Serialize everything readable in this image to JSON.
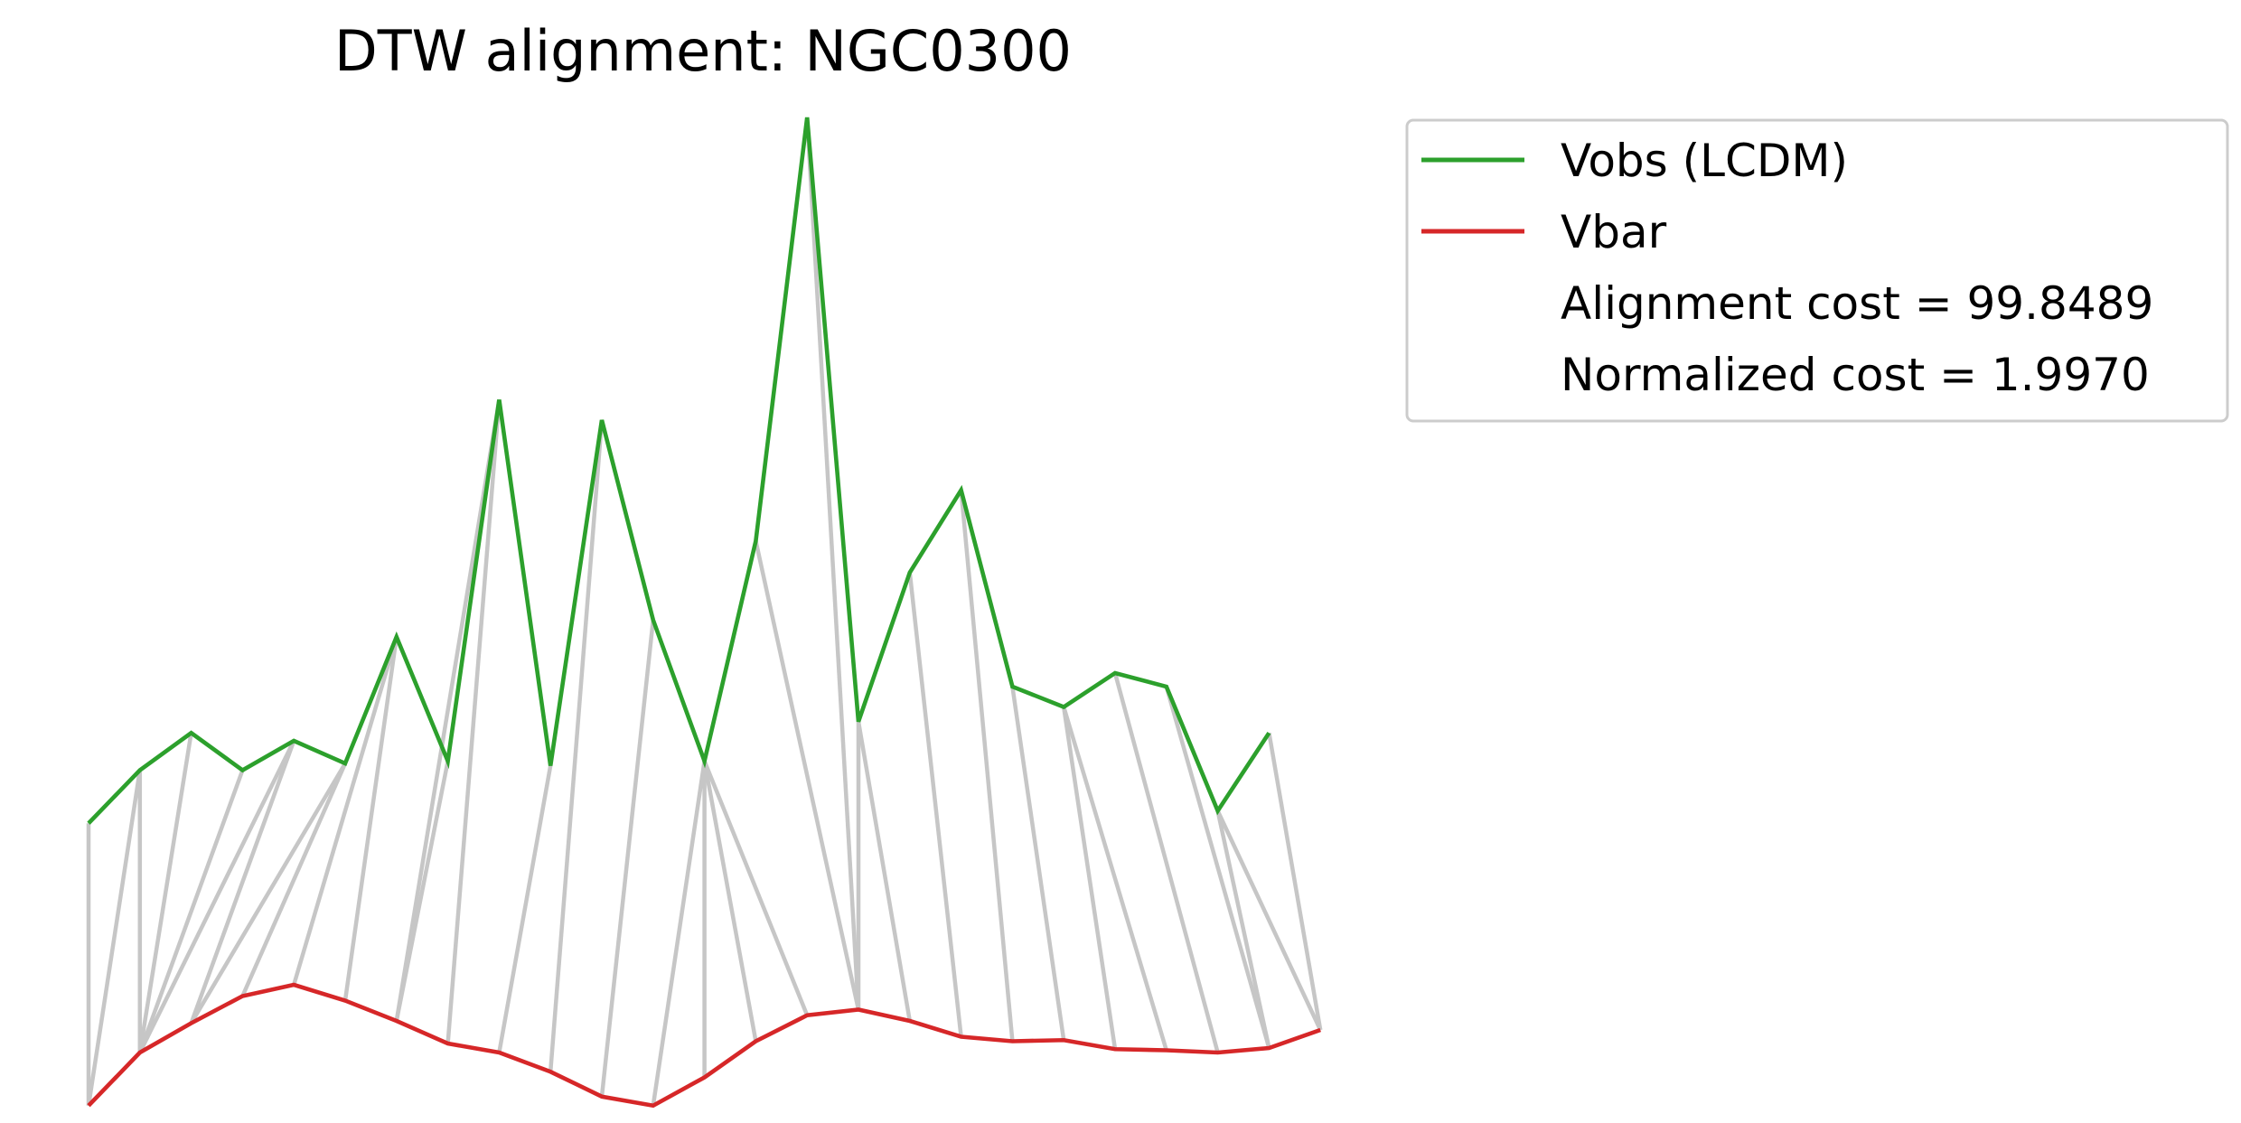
{
  "chart_data": {
    "type": "line",
    "title": "DTW alignment: NGC0300",
    "xlabel": "",
    "ylabel": "",
    "axes_visible": false,
    "grid": false,
    "legend_placement": "outside-top-right",
    "series": [
      {
        "name": "Vobs (LCDM)",
        "color": "#2ca02c",
        "values": [
          5.65,
          6.12,
          6.45,
          6.12,
          6.38,
          6.18,
          7.3,
          6.2,
          9.4,
          6.16,
          9.22,
          7.45,
          6.2,
          8.15,
          11.9,
          6.55,
          7.87,
          8.6,
          6.86,
          6.68,
          6.98,
          6.86,
          5.76,
          6.45
        ]
      },
      {
        "name": "Vbar",
        "color": "#d62728",
        "values": [
          3.15,
          3.62,
          3.88,
          4.12,
          4.22,
          4.08,
          3.9,
          3.7,
          3.62,
          3.45,
          3.23,
          3.15,
          3.4,
          3.72,
          3.95,
          4.0,
          3.9,
          3.76,
          3.72,
          3.73,
          3.65,
          3.64,
          3.62,
          3.66,
          3.82
        ]
      }
    ],
    "alignment_pairs": [
      [
        0,
        0
      ],
      [
        1,
        0
      ],
      [
        1,
        1
      ],
      [
        2,
        1
      ],
      [
        3,
        1
      ],
      [
        4,
        1
      ],
      [
        4,
        2
      ],
      [
        5,
        2
      ],
      [
        5,
        3
      ],
      [
        6,
        4
      ],
      [
        6,
        5
      ],
      [
        7,
        6
      ],
      [
        8,
        6
      ],
      [
        8,
        7
      ],
      [
        9,
        8
      ],
      [
        10,
        9
      ],
      [
        11,
        10
      ],
      [
        12,
        11
      ],
      [
        12,
        12
      ],
      [
        12,
        13
      ],
      [
        12,
        14
      ],
      [
        13,
        15
      ],
      [
        14,
        15
      ],
      [
        15,
        15
      ],
      [
        15,
        16
      ],
      [
        16,
        17
      ],
      [
        17,
        18
      ],
      [
        18,
        19
      ],
      [
        19,
        20
      ],
      [
        19,
        21
      ],
      [
        20,
        22
      ],
      [
        21,
        23
      ],
      [
        22,
        23
      ],
      [
        22,
        24
      ],
      [
        23,
        24
      ]
    ],
    "alignment_color": "#c6c6c6",
    "ylim": [
      2.5,
      12.5
    ],
    "legend": {
      "entries": [
        {
          "label": "Vobs (LCDM)",
          "color": "#2ca02c",
          "has_line": true
        },
        {
          "label": "Vbar",
          "color": "#d62728",
          "has_line": true
        },
        {
          "label": "Alignment cost = 99.8489",
          "has_line": false
        },
        {
          "label": "Normalized cost = 1.9970",
          "has_line": false
        }
      ]
    }
  }
}
